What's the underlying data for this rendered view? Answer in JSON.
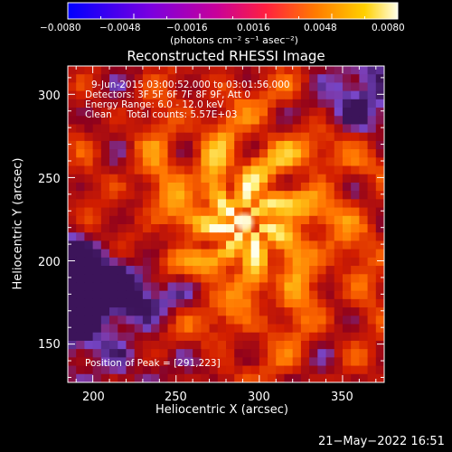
{
  "colorbar": {
    "tick_labels": [
      "−0.0080",
      "−0.0048",
      "−0.0016",
      "0.0016",
      "0.0048",
      "0.0080"
    ],
    "range": [
      -0.008,
      0.008
    ],
    "units_text": "(photons cm⁻² s⁻¹ asec⁻²)"
  },
  "plot": {
    "title": "Reconstructed RHESSI Image",
    "annotations": [
      "9-Jun-2015 03:00:52.000 to 03:01:56.000",
      "Detectors: 3F 5F 6F 7F 8F 9F, Att 0",
      "Energy Range: 6.0 - 12.0 keV",
      "Clean     Total counts: 5.57E+03"
    ],
    "peak_label": "Position of Peak = [291,223]"
  },
  "footer": {
    "timestamp": "21−May−2022 16:51"
  },
  "chart_data": {
    "type": "heatmap",
    "title": "Reconstructed RHESSI Image",
    "xlabel": "Heliocentric X (arcsec)",
    "ylabel": "Heliocentric Y (arcsec)",
    "xlim": [
      185,
      375
    ],
    "ylim": [
      127,
      317
    ],
    "x_ticks": [
      200,
      250,
      300,
      350
    ],
    "y_ticks": [
      150,
      200,
      250,
      300
    ],
    "colorscale": "heat",
    "value_range": [
      -0.008,
      0.008
    ],
    "peak": [
      291,
      223
    ],
    "colors": {
      "background": "#000000",
      "text": "#ffffff",
      "negative": "#7a3cc6",
      "peak": "#fffbe0"
    }
  }
}
